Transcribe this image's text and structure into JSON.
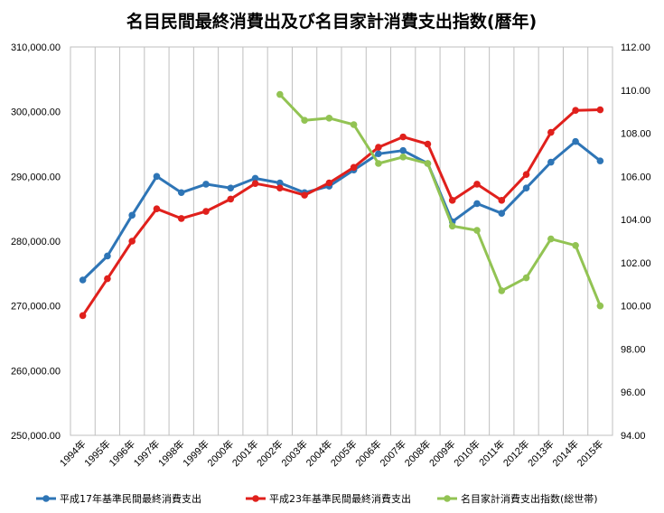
{
  "chart_data": {
    "type": "line",
    "title": "名目民間最終消費出及び名目家計消費支出指数(暦年)",
    "categories": [
      "1994年",
      "1995年",
      "1996年",
      "1997年",
      "1998年",
      "1999年",
      "2000年",
      "2001年",
      "2002年",
      "2003年",
      "2004年",
      "2005年",
      "2006年",
      "2007年",
      "2008年",
      "2009年",
      "2010年",
      "2011年",
      "2012年",
      "2013年",
      "2014年",
      "2015年"
    ],
    "left_axis": {
      "ylim": [
        250000,
        310000
      ],
      "ticks": [
        "250,000.00",
        "260,000.00",
        "270,000.00",
        "280,000.00",
        "290,000.00",
        "300,000.00",
        "310,000.00"
      ]
    },
    "right_axis": {
      "ylim": [
        94,
        112
      ],
      "ticks": [
        "94.00",
        "96.00",
        "98.00",
        "100.00",
        "102.00",
        "104.00",
        "106.00",
        "108.00",
        "110.00",
        "112.00"
      ]
    },
    "grid": "vertical",
    "legend_position": "bottom",
    "series": [
      {
        "name": "平成17年基準民間最終消費支出",
        "axis": "left",
        "color": "#2e75b6",
        "values": [
          274000,
          277700,
          284000,
          290000,
          287500,
          288800,
          288200,
          289700,
          289000,
          287500,
          288500,
          291000,
          293500,
          294000,
          292000,
          283000,
          285800,
          284300,
          288200,
          292200,
          295400,
          292400
        ]
      },
      {
        "name": "平成23年基準民間最終消費支出",
        "axis": "left",
        "color": "#e0201c",
        "values": [
          268500,
          274200,
          280000,
          285000,
          283500,
          284600,
          286500,
          288900,
          288200,
          287100,
          289000,
          291400,
          294500,
          296100,
          295000,
          286300,
          288800,
          286300,
          290300,
          296800,
          300200,
          300300
        ]
      },
      {
        "name": "名目家計消費支出指数(総世帯)",
        "axis": "right",
        "color": "#92c353",
        "values": [
          null,
          null,
          null,
          null,
          null,
          null,
          null,
          null,
          109.8,
          108.6,
          108.7,
          108.4,
          106.6,
          106.9,
          106.6,
          103.7,
          103.5,
          100.7,
          101.3,
          103.1,
          102.8,
          100.0
        ]
      }
    ]
  }
}
